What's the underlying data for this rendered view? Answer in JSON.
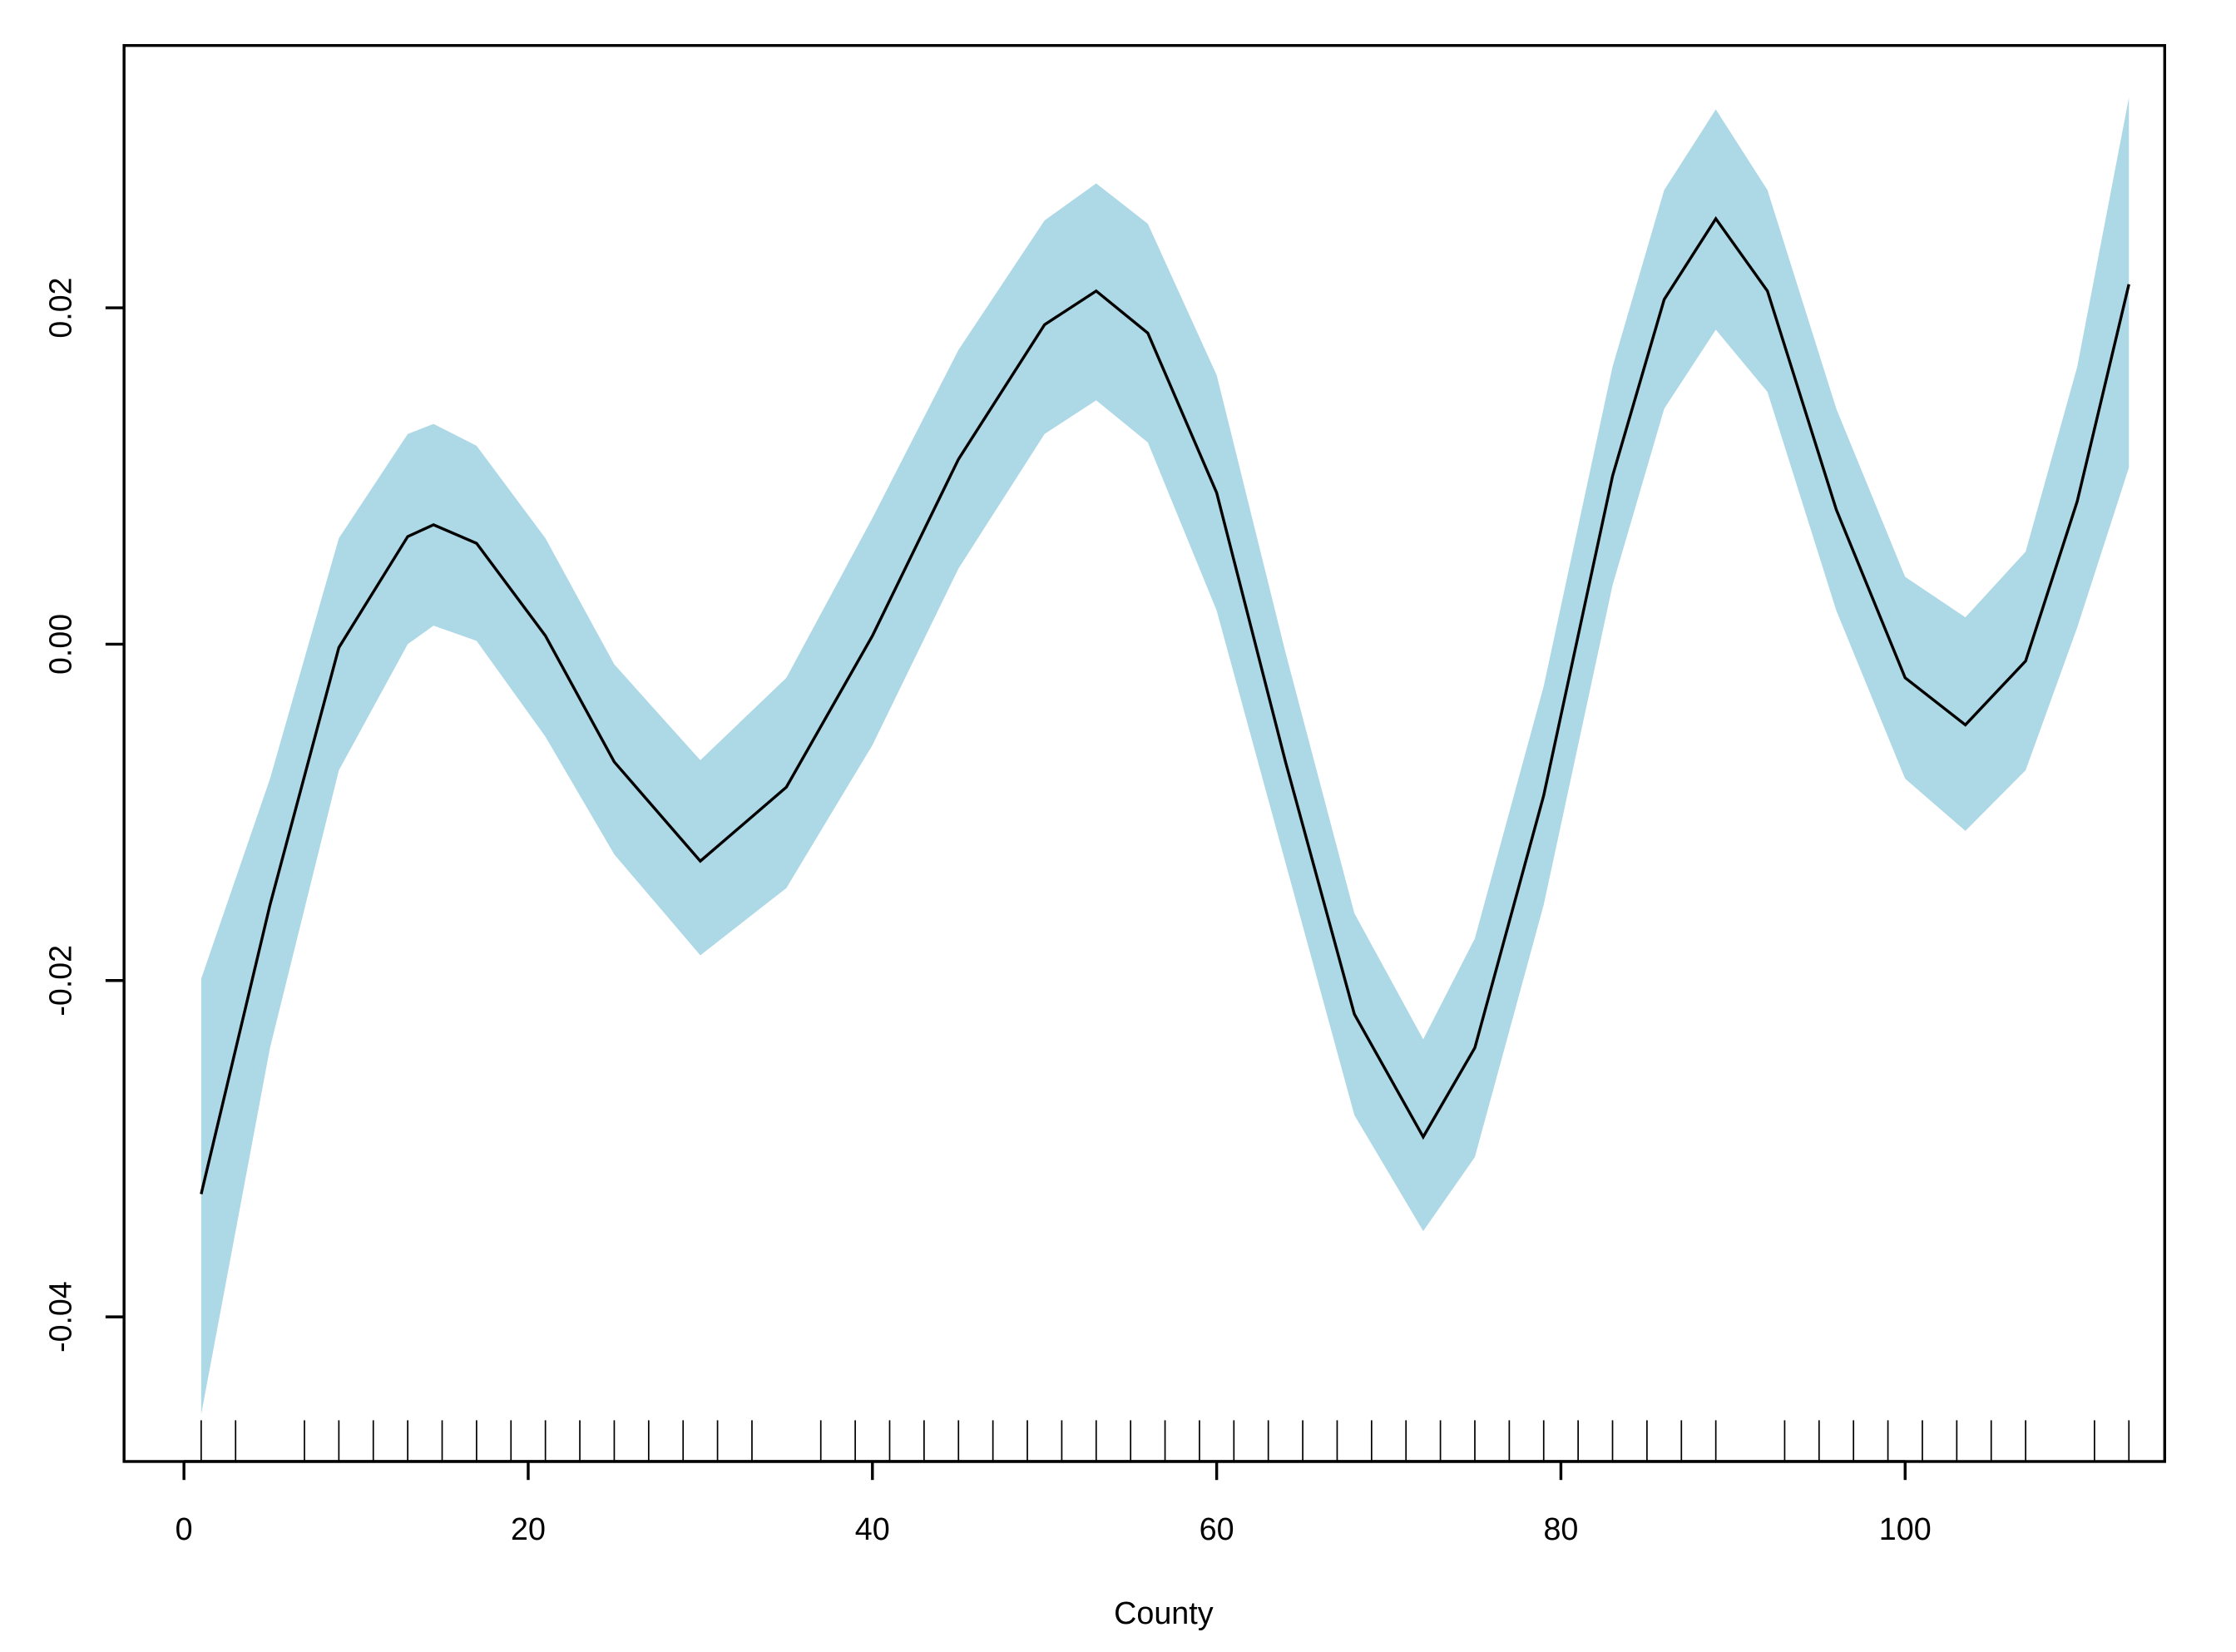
{
  "chart_data": {
    "type": "line",
    "xlabel": "County",
    "x": [
      1,
      5,
      9,
      13,
      14.5,
      17,
      21,
      25,
      30,
      35,
      40,
      45,
      50,
      53,
      56,
      60,
      64,
      68,
      72,
      75,
      79,
      83,
      86,
      89,
      92,
      96,
      100,
      103.5,
      107,
      110,
      113
    ],
    "values": [
      -0.0327,
      -0.0155,
      -0.0002,
      0.0064,
      0.0071,
      0.006,
      0.0005,
      -0.007,
      -0.0129,
      -0.0085,
      0.0005,
      0.011,
      0.019,
      0.021,
      0.0185,
      0.009,
      -0.007,
      -0.022,
      -0.0293,
      -0.024,
      -0.009,
      0.01,
      0.0205,
      0.0253,
      0.021,
      0.008,
      -0.002,
      -0.0048,
      -0.001,
      0.0085,
      0.0214
    ],
    "lower": [
      -0.0458,
      -0.024,
      -0.0075,
      0.0,
      0.0011,
      0.0002,
      -0.0055,
      -0.0125,
      -0.0185,
      -0.0145,
      -0.006,
      0.0045,
      0.0125,
      0.0145,
      0.012,
      0.002,
      -0.013,
      -0.028,
      -0.0349,
      -0.0305,
      -0.0155,
      0.0035,
      0.014,
      0.0187,
      0.015,
      0.002,
      -0.008,
      -0.0111,
      -0.0075,
      0.001,
      0.0105
    ],
    "upper": [
      -0.0199,
      -0.008,
      0.0063,
      0.0125,
      0.0131,
      0.0118,
      0.0063,
      -0.0012,
      -0.0069,
      -0.002,
      0.0075,
      0.0175,
      0.0252,
      0.0274,
      0.025,
      0.016,
      -0.0005,
      -0.016,
      -0.0235,
      -0.0175,
      -0.0025,
      0.0165,
      0.027,
      0.0318,
      0.027,
      0.014,
      0.004,
      0.0016,
      0.0055,
      0.0165,
      0.0325
    ],
    "rug": [
      1,
      3,
      7,
      9,
      11,
      13,
      15,
      17,
      19,
      21,
      23,
      25,
      27,
      29,
      31,
      33,
      37,
      39,
      41,
      43,
      45,
      47,
      49,
      51,
      53,
      55,
      57,
      59,
      61,
      63,
      65,
      67,
      69,
      71,
      73,
      75,
      77,
      79,
      81,
      83,
      85,
      87,
      89,
      93,
      95,
      97,
      99,
      101,
      103,
      105,
      107,
      111,
      113
    ],
    "line_color": "#000000",
    "band_color": "#add8e6",
    "xlim": [
      -3.48,
      115.08
    ],
    "ylim": [
      -0.0486,
      0.0356
    ],
    "xticks": [
      0,
      20,
      40,
      60,
      80,
      100
    ],
    "yticks": [
      {
        "value": -0.04,
        "label": "-0.04"
      },
      {
        "value": -0.02,
        "label": "-0.02"
      },
      {
        "value": 0,
        "label": "0.00"
      },
      0.02
    ]
  }
}
